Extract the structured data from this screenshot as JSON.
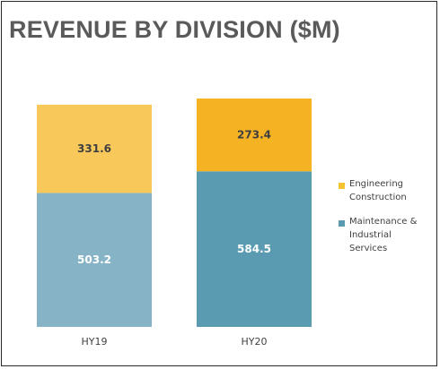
{
  "title": "REVENUE BY DIVISION ($M)",
  "colors": {
    "HY19": {
      "Engineering Construction": "#f8c95a",
      "Maintenance & Industrial Services": "#86b4c6"
    },
    "HY20": {
      "Engineering Construction": "#f5b324",
      "Maintenance & Industrial Services": "#5a9bb1"
    }
  },
  "legend": [
    {
      "lines": [
        "Engineering",
        "Construction"
      ],
      "color": "#f5c232"
    },
    {
      "lines": [
        "Maintenance &",
        "Industrial",
        "Services"
      ],
      "color": "#5a9bb1"
    }
  ],
  "chart_data": {
    "type": "bar",
    "stacked": true,
    "title": "REVENUE BY DIVISION ($M)",
    "categories": [
      "HY19",
      "HY20"
    ],
    "series": [
      {
        "name": "Maintenance & Industrial Services",
        "values": [
          503.2,
          584.5
        ]
      },
      {
        "name": "Engineering Construction",
        "values": [
          331.6,
          273.4
        ]
      }
    ],
    "data_labels": [
      [
        "503.2",
        "584.5"
      ],
      [
        "331.6",
        "273.4"
      ]
    ],
    "xlabel": "",
    "ylabel": "",
    "grid": false,
    "legend_position": "right"
  }
}
